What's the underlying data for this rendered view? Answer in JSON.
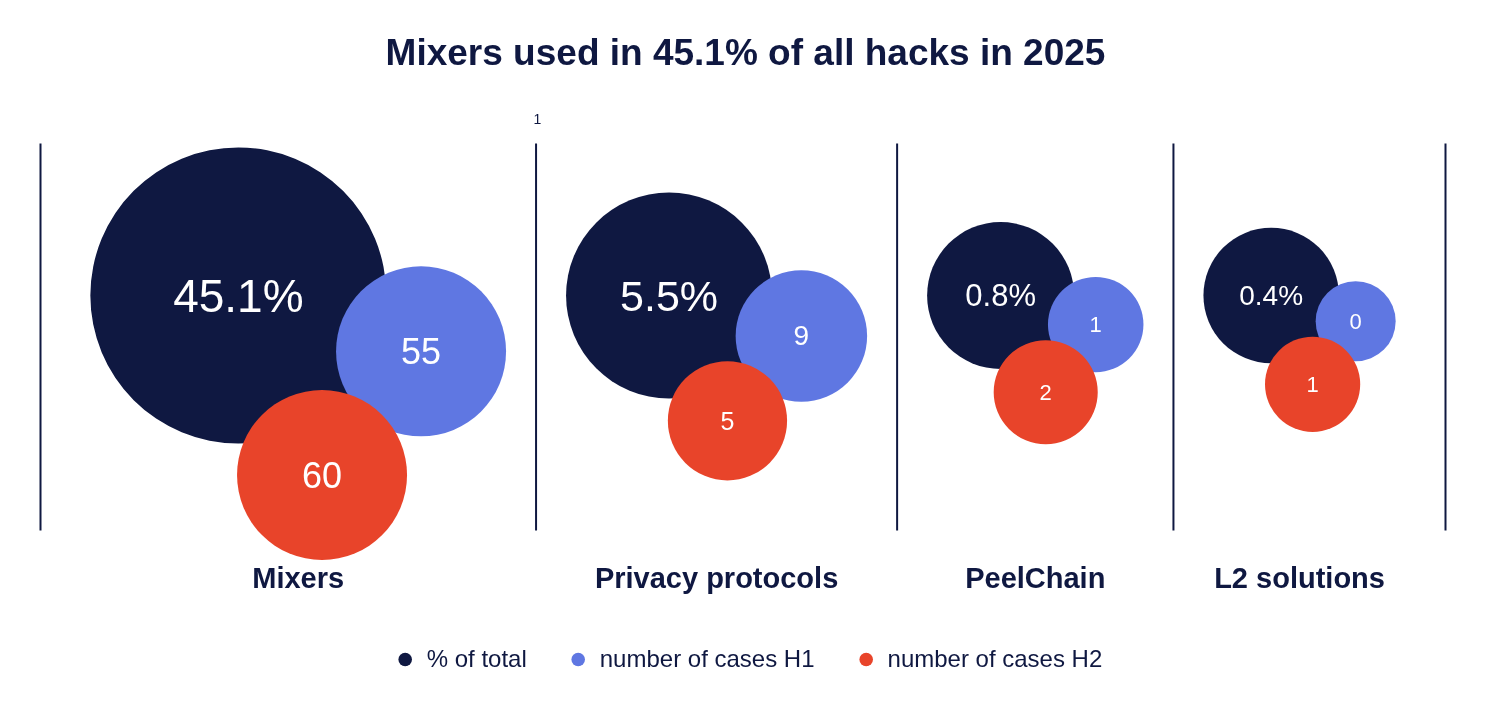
{
  "chart_data": {
    "type": "other",
    "title": "Mixers used in 45.1% of all hacks in 2025",
    "categories": [
      "Mixers",
      "Privacy protocols",
      "PeelChain",
      "L2 solutions"
    ],
    "series": [
      {
        "name": "% of total",
        "color": "#0f1841",
        "values": [
          45.1,
          5.5,
          0.8,
          0.4
        ],
        "value_labels": [
          "45.1%",
          "5.5%",
          "0.8%",
          "0.4%"
        ]
      },
      {
        "name": "number of cases H1",
        "color": "#5f77e2",
        "values": [
          55,
          9,
          1,
          0
        ],
        "value_labels": [
          "55",
          "9",
          "1",
          "0"
        ]
      },
      {
        "name": "number of cases H2",
        "color": "#e8442a",
        "values": [
          60,
          5,
          2,
          1
        ],
        "value_labels": [
          "60",
          "5",
          "2",
          "1"
        ]
      }
    ],
    "annotations": [
      "1"
    ],
    "legend": "bottom"
  }
}
